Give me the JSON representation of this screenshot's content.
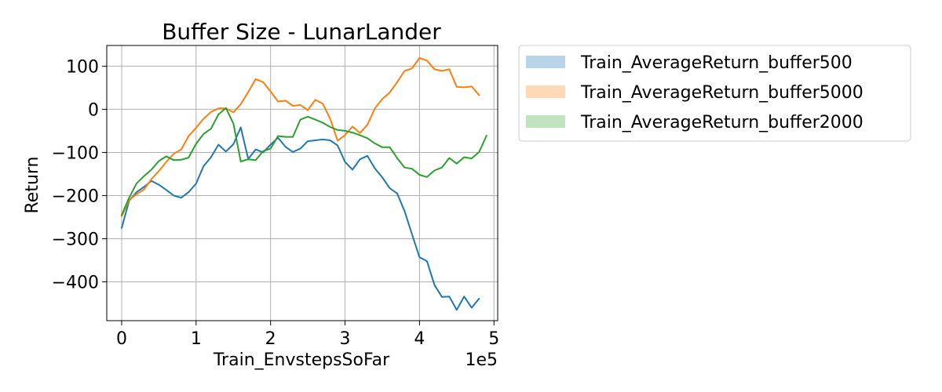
{
  "chart_data": {
    "type": "line",
    "title": "Buffer Size - LunarLander",
    "xlabel": "Train_EnvstepsSoFar",
    "ylabel": "Return",
    "x_offset_text": "1e5",
    "xlim": [
      -0.2,
      5.05
    ],
    "ylim": [
      -490,
      148
    ],
    "x_ticks": [
      0,
      1,
      2,
      3,
      4,
      5
    ],
    "x_tick_labels": [
      "0",
      "1",
      "2",
      "3",
      "4",
      "5"
    ],
    "y_ticks": [
      100,
      0,
      -100,
      -200,
      -300,
      -400
    ],
    "y_tick_labels": [
      "100",
      "0",
      "−100",
      "−200",
      "−300",
      "−400"
    ],
    "grid": true,
    "legend_position": "outside-right",
    "series": [
      {
        "name": "Train_AverageReturn_buffer500",
        "color": "#1f77b4",
        "legend_color": "#b9d3e9",
        "values": [
          -275,
          -212,
          -192,
          -180,
          -166,
          -175,
          -187,
          -200,
          -205,
          -192,
          -172,
          -132,
          -111,
          -82,
          -98,
          -81,
          -42,
          -115,
          -93,
          -100,
          -82,
          -66,
          -87,
          -99,
          -91,
          -74,
          -72,
          -70,
          -72,
          -84,
          -122,
          -140,
          -116,
          -108,
          -137,
          -158,
          -183,
          -195,
          -236,
          -290,
          -343,
          -352,
          -407,
          -435,
          -434,
          -465,
          -434,
          -460,
          -439
        ]
      },
      {
        "name": "Train_AverageReturn_buffer5000",
        "color": "#ff7f0e",
        "legend_color": "#ffd8b6",
        "values": [
          -248,
          -210,
          -197,
          -186,
          -162,
          -143,
          -122,
          -103,
          -93,
          -62,
          -43,
          -22,
          -6,
          2,
          2,
          -7,
          12,
          40,
          70,
          63,
          41,
          18,
          20,
          8,
          10,
          -2,
          22,
          13,
          -22,
          -73,
          -60,
          -40,
          -55,
          -36,
          2,
          24,
          39,
          63,
          89,
          95,
          119,
          113,
          93,
          89,
          93,
          52,
          51,
          53,
          33
        ]
      },
      {
        "name": "Train_AverageReturn_buffer2000",
        "color": "#2ca02c",
        "legend_color": "#c0e3c0",
        "values": [
          -245,
          -205,
          -172,
          -155,
          -140,
          -120,
          -109,
          -118,
          -117,
          -112,
          -80,
          -57,
          -45,
          -12,
          3,
          -33,
          -121,
          -116,
          -118,
          -97,
          -91,
          -62,
          -64,
          -64,
          -24,
          -17,
          -24,
          -31,
          -41,
          -48,
          -50,
          -54,
          -60,
          -67,
          -79,
          -88,
          -88,
          -113,
          -135,
          -138,
          -152,
          -157,
          -142,
          -135,
          -113,
          -126,
          -111,
          -114,
          -99,
          -61
        ]
      }
    ]
  }
}
